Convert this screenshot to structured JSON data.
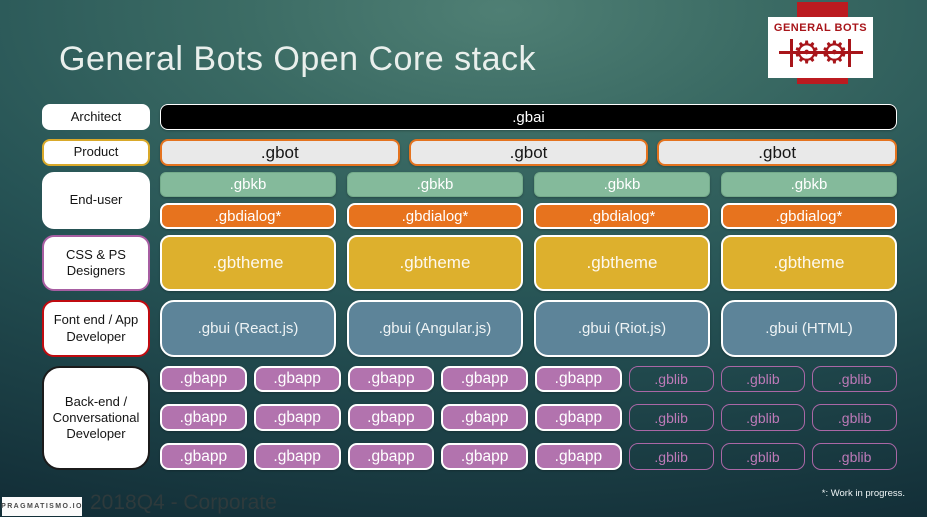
{
  "title": "General Bots Open Core stack",
  "logo": {
    "wordmark": "GENERAL BOTS",
    "gear_glyph": "⚙"
  },
  "roles": [
    {
      "label": "Architect"
    },
    {
      "label": "Product"
    },
    {
      "label": "End-user"
    },
    {
      "label": "CSS & PS Designers"
    },
    {
      "label": "Font end / App Developer"
    },
    {
      "label": "Back-end / Conversational Developer"
    }
  ],
  "cells": {
    "gbai": [
      ".gbai"
    ],
    "gbot": [
      ".gbot",
      ".gbot",
      ".gbot"
    ],
    "gbkb": [
      ".gbkb",
      ".gbkb",
      ".gbkb",
      ".gbkb"
    ],
    "gbdialog": [
      ".gbdialog*",
      ".gbdialog*",
      ".gbdialog*",
      ".gbdialog*"
    ],
    "gbtheme": [
      ".gbtheme",
      ".gbtheme",
      ".gbtheme",
      ".gbtheme"
    ],
    "gbui": [
      ".gbui (React.js)",
      ".gbui (Angular.js)",
      ".gbui (Riot.js)",
      ".gbui (HTML)"
    ],
    "apps_row1": [
      ".gbapp",
      ".gbapp",
      ".gbapp",
      ".gbapp",
      ".gbapp",
      ".gblib",
      ".gblib",
      ".gblib"
    ],
    "apps_row2": [
      ".gbapp",
      ".gbapp",
      ".gbapp",
      ".gbapp",
      ".gbapp",
      ".gblib",
      ".gblib",
      ".gblib"
    ],
    "apps_row3": [
      ".gbapp",
      ".gbapp",
      ".gbapp",
      ".gbapp",
      ".gbapp",
      ".gblib",
      ".gblib",
      ".gblib"
    ]
  },
  "footer": {
    "brand": "PRAGMATISMO.IO",
    "caption": "2018Q4 - Corporate",
    "note": "*: Work in progress."
  },
  "colors": {
    "background_teal": "#2c5a57",
    "gbai_black": "#000000",
    "gbot_fill": "#e9e9e9",
    "gbot_border_orange": "#e4731f",
    "gbkb_green": "#84ba9b",
    "gbdialog_orange": "#e7731e",
    "gbtheme_gold": "#ddb02d",
    "gbui_slate": "#5d8499",
    "gbapp_purple": "#b273ae",
    "gblib_outline_purple": "#aa67a6",
    "logo_red": "#bb1b20",
    "product_border_gold": "#d9a92a",
    "css_border_purple": "#a75ea2",
    "frontend_border_red": "#c00b10"
  }
}
